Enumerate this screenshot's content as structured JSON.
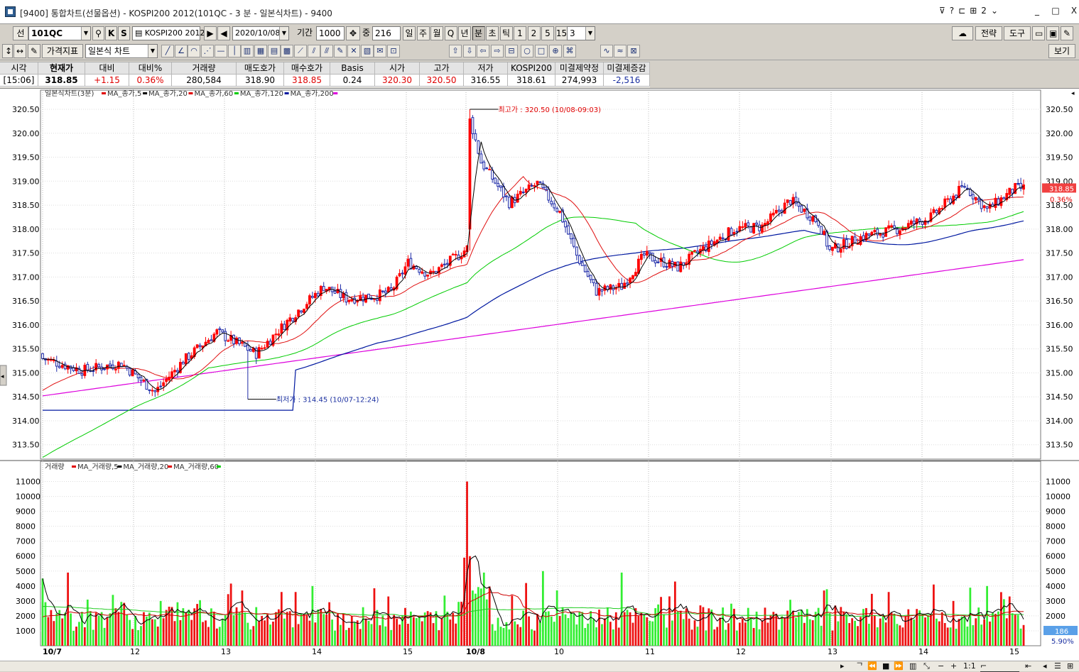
{
  "window": {
    "title": "[9400] 통합차트(선물옵션) - KOSPI200 2012(101QC - 3 분 - 일본식차트) - 9400",
    "icons": [
      "pin-icon",
      "help-icon",
      "link-icon",
      "layout-icon",
      "number-2-icon",
      "dropdown-icon"
    ],
    "minimize": "_",
    "maximize": "□",
    "close": "X"
  },
  "toolbar1": {
    "type_label": "선",
    "code": "101QC",
    "k_label": "K",
    "s_label": "S",
    "product": "KOSPI200 2012",
    "date": "2020/10/08",
    "period_label": "기간",
    "period_value": "1000",
    "view_label": "중",
    "view_value": "216",
    "unit_buttons": [
      "일",
      "주",
      "월",
      "Q",
      "년",
      "분",
      "초",
      "틱",
      "1",
      "2",
      "5",
      "15"
    ],
    "minute_value": "3",
    "strategy_label": "전략",
    "tools_label": "도구",
    "active_unit": "분"
  },
  "toolbar2": {
    "indicator_label": "가격지표",
    "charttype_label": "일본식 차트",
    "view_label": "보기"
  },
  "quote": {
    "headers": [
      "시각",
      "현재가",
      "대비",
      "대비%",
      "거래량",
      "매도호가",
      "매수호가",
      "Basis",
      "시가",
      "고가",
      "저가",
      "KOSPI200",
      "미결제약정",
      "미결제증감"
    ],
    "values": [
      "[15:06]",
      "318.85",
      "+1.15",
      "0.36%",
      "280,584",
      "318.90",
      "318.85",
      "0.24",
      "320.30",
      "320.50",
      "316.55",
      "318.61",
      "274,993",
      "-2,516"
    ]
  },
  "price_panel": {
    "legend_title": "일본식차트(3분)",
    "legend_items": [
      "MA_종가,5",
      "MA_종가,20",
      "MA_종가,60",
      "MA_종가,120",
      "MA_종가,200"
    ],
    "high_label": "최고가 : 320.50 (10/08-09:03)",
    "low_label": "최저가 : 314.45 (10/07-12:24)",
    "current_price": "318.85",
    "current_change": "0.36%",
    "y_ticks": [
      "320.50",
      "320.00",
      "319.50",
      "319.00",
      "318.50",
      "318.00",
      "317.50",
      "317.00",
      "316.50",
      "316.00",
      "315.50",
      "315.00",
      "314.50",
      "314.00",
      "313.50"
    ]
  },
  "volume_panel": {
    "legend_title": "거래량",
    "legend_items": [
      "MA_거래량,5",
      "MA_거래량,20",
      "MA_거래량,60"
    ],
    "y_ticks": [
      "11000",
      "10000",
      "9000",
      "8000",
      "7000",
      "6000",
      "5000",
      "4000",
      "3000",
      "2000",
      "1000"
    ],
    "current_volume": "186",
    "volume_pct": "5.90%"
  },
  "x_axis": {
    "labels": [
      "10/7",
      "12",
      "13",
      "14",
      "15",
      "10/8",
      "10",
      "11",
      "12",
      "13",
      "14",
      "15"
    ]
  },
  "colors": {
    "up": "#ff0000",
    "down": "#1e2ba8",
    "ma5": "#000000",
    "ma20": "#e01010",
    "ma60": "#00cc00",
    "ma120": "#0018a0",
    "ma200": "#dd00dd",
    "vol_up": "#ee1111",
    "vol_down": "#33ee33"
  },
  "statusbar": {
    "scale_label": "1:1"
  },
  "chart_data": [
    {
      "type": "candlestick",
      "title": "일본식차트(3분)",
      "x_labels": [
        "10/7",
        "12",
        "13",
        "14",
        "15",
        "10/8",
        "10",
        "11",
        "12",
        "13",
        "14",
        "15"
      ],
      "ylim": [
        313.2,
        320.9
      ],
      "y_ticks": [
        313.5,
        314.0,
        314.5,
        315.0,
        315.5,
        316.0,
        316.5,
        317.0,
        317.5,
        318.0,
        318.5,
        319.0,
        319.5,
        320.0,
        320.5
      ],
      "series": [
        {
          "name": "MA_종가,5",
          "values": []
        },
        {
          "name": "MA_종가,20",
          "values": []
        },
        {
          "name": "MA_종가,60",
          "values": []
        },
        {
          "name": "MA_종가,120",
          "values": []
        },
        {
          "name": "MA_종가,200",
          "values": []
        }
      ],
      "anchors": [
        [
          0,
          315.3
        ],
        [
          14,
          315.05
        ],
        [
          28,
          315.2
        ],
        [
          40,
          314.6
        ],
        [
          50,
          315.25
        ],
        [
          62,
          315.85
        ],
        [
          76,
          315.4
        ],
        [
          90,
          316.25
        ],
        [
          100,
          316.8
        ],
        [
          108,
          316.55
        ],
        [
          118,
          316.6
        ],
        [
          124,
          316.7
        ],
        [
          130,
          317.3
        ],
        [
          138,
          317.05
        ],
        [
          148,
          317.45
        ],
        [
          151,
          317.6
        ],
        [
          152,
          320.3
        ],
        [
          156,
          319.4
        ],
        [
          166,
          318.55
        ],
        [
          176,
          318.95
        ],
        [
          184,
          318.35
        ],
        [
          190,
          317.45
        ],
        [
          197,
          316.7
        ],
        [
          206,
          316.8
        ],
        [
          214,
          317.45
        ],
        [
          226,
          317.2
        ],
        [
          234,
          317.55
        ],
        [
          246,
          318.0
        ],
        [
          256,
          318.05
        ],
        [
          266,
          318.6
        ],
        [
          276,
          318.15
        ],
        [
          280,
          317.55
        ],
        [
          292,
          317.85
        ],
        [
          304,
          318.0
        ],
        [
          316,
          318.25
        ],
        [
          328,
          318.9
        ],
        [
          336,
          318.4
        ],
        [
          346,
          318.85
        ]
      ],
      "anchor_note": "bar index, close"
    },
    {
      "type": "bar",
      "title": "거래량",
      "ylim": [
        0,
        11500
      ],
      "series": [
        {
          "name": "MA_거래량,5",
          "values": []
        },
        {
          "name": "MA_거래량,20",
          "values": []
        },
        {
          "name": "MA_거래량,60",
          "values": []
        }
      ],
      "peaks": [
        [
          0,
          4500
        ],
        [
          9,
          4900
        ],
        [
          55,
          2800
        ],
        [
          71,
          3700
        ],
        [
          85,
          3600
        ],
        [
          96,
          4000
        ],
        [
          123,
          3300
        ],
        [
          146,
          2200
        ],
        [
          150,
          5900
        ],
        [
          151,
          11000
        ],
        [
          152,
          6000
        ],
        [
          153,
          3700
        ],
        [
          157,
          4900
        ],
        [
          172,
          4200
        ],
        [
          178,
          5000
        ],
        [
          206,
          4900
        ],
        [
          229,
          2500
        ],
        [
          278,
          3700
        ],
        [
          299,
          2000
        ],
        [
          317,
          4100
        ],
        [
          324,
          3000
        ],
        [
          336,
          4000
        ],
        [
          344,
          3300
        ]
      ]
    }
  ]
}
